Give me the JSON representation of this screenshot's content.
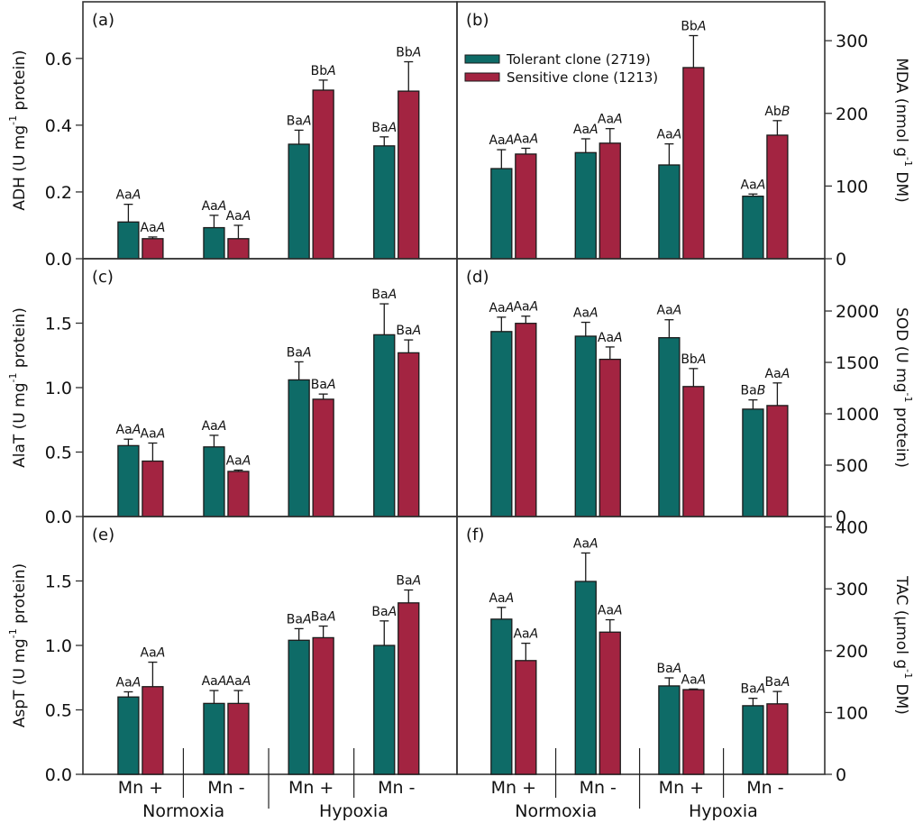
{
  "colors": {
    "tolerant": "#0e6b67",
    "sensitive": "#a32441",
    "axis": "#333333"
  },
  "legend": {
    "placement": "top-left of panel (b)",
    "entries": [
      {
        "label": "Tolerant clone (2719)",
        "series": "tolerant"
      },
      {
        "label": "Sensitive clone (1213)",
        "series": "sensitive"
      }
    ]
  },
  "x_axis": {
    "categories": [
      "Mn +",
      "Mn -",
      "Mn +",
      "Mn -"
    ],
    "groups": [
      "Normoxia",
      "Hypoxia"
    ]
  },
  "chart_data": [
    {
      "type": "bar",
      "panel": "(a)",
      "ylabel": "ADH (U mg-1 protein)",
      "ylabel_main": "ADH (U mg",
      "ylabel_sup": "-1",
      "ylabel_end": " protein)",
      "axis_side": "left",
      "ylim": [
        0,
        0.775
      ],
      "yticks": [
        0.0,
        0.2,
        0.4,
        0.6
      ],
      "ytick_labels": [
        "0.0",
        "0.2",
        "0.4",
        "0.6"
      ],
      "categories": [
        "Normoxia Mn +",
        "Normoxia Mn -",
        "Hypoxia Mn +",
        "Hypoxia Mn -"
      ],
      "series": [
        {
          "name": "Tolerant clone (2719)",
          "values": [
            0.11,
            0.093,
            0.343,
            0.338
          ],
          "errors": [
            0.053,
            0.037,
            0.042,
            0.027
          ],
          "annotations": [
            "AaA",
            "AaA",
            "BaA",
            "BaA"
          ]
        },
        {
          "name": "Sensitive clone (1213)",
          "values": [
            0.06,
            0.06,
            0.505,
            0.502
          ],
          "errors": [
            0.005,
            0.04,
            0.03,
            0.088
          ],
          "annotations": [
            "AaA",
            "AaA",
            "BbA",
            "BbA"
          ]
        }
      ]
    },
    {
      "type": "bar",
      "panel": "(b)",
      "ylabel": "MDA (nmol g-1 DM)",
      "ylabel_main": "MDA (nmol g",
      "ylabel_sup": "-1",
      "ylabel_end": " DM)",
      "axis_side": "right",
      "ylim": [
        0,
        356
      ],
      "yticks": [
        0,
        100,
        200,
        300
      ],
      "ytick_labels": [
        "0",
        "100",
        "200",
        "300"
      ],
      "categories": [
        "Normoxia Mn +",
        "Normoxia Mn -",
        "Hypoxia Mn +",
        "Hypoxia Mn -"
      ],
      "series": [
        {
          "name": "Tolerant clone (2719)",
          "values": [
            124,
            146,
            129,
            86
          ],
          "errors": [
            26,
            19,
            29,
            3
          ],
          "annotations": [
            "AaA",
            "AaA",
            "AaA",
            "AaA"
          ]
        },
        {
          "name": "Sensitive clone (1213)",
          "values": [
            144,
            159,
            263,
            170
          ],
          "errors": [
            8,
            20,
            44,
            20
          ],
          "annotations": [
            "AaA",
            "AaA",
            "BbA",
            "AbB"
          ]
        }
      ]
    },
    {
      "type": "bar",
      "panel": "(c)",
      "ylabel": "AlaT (U mg-1 protein)",
      "ylabel_main": "AlaT (U mg",
      "ylabel_sup": "-1",
      "ylabel_end": " protein)",
      "axis_side": "left",
      "ylim": [
        0,
        2.0
      ],
      "yticks": [
        0.0,
        0.5,
        1.0,
        1.5
      ],
      "ytick_labels": [
        "0.0",
        "0.5",
        "1.0",
        "1.5"
      ],
      "categories": [
        "Normoxia Mn +",
        "Normoxia Mn -",
        "Hypoxia Mn +",
        "Hypoxia Mn -"
      ],
      "series": [
        {
          "name": "Tolerant clone (2719)",
          "values": [
            0.55,
            0.54,
            1.06,
            1.41
          ],
          "errors": [
            0.05,
            0.09,
            0.14,
            0.24
          ],
          "annotations": [
            "AaA",
            "AaA",
            "BaA",
            "BaA"
          ]
        },
        {
          "name": "Sensitive clone (1213)",
          "values": [
            0.43,
            0.35,
            0.91,
            1.27
          ],
          "errors": [
            0.14,
            0.01,
            0.04,
            0.1
          ],
          "annotations": [
            "AaA",
            "AaA",
            "BaA",
            "BaA"
          ]
        }
      ]
    },
    {
      "type": "bar",
      "panel": "(d)",
      "ylabel": "SOD (U mg-1 protein)",
      "ylabel_main": "SOD (U mg",
      "ylabel_sup": "-1",
      "ylabel_end": " protein)",
      "axis_side": "right",
      "ylim": [
        0,
        2509
      ],
      "yticks": [
        0,
        500,
        1000,
        1500,
        2000
      ],
      "ytick_labels": [
        "0",
        "500",
        "1000",
        "1500",
        "2000"
      ],
      "categories": [
        "Normoxia Mn +",
        "Normoxia Mn -",
        "Hypoxia Mn +",
        "Hypoxia Mn -"
      ],
      "series": [
        {
          "name": "Tolerant clone (2719)",
          "values": [
            1800,
            1755,
            1740,
            1045
          ],
          "errors": [
            140,
            135,
            175,
            90
          ],
          "annotations": [
            "AaA",
            "AaA",
            "AaA",
            "BaB"
          ]
        },
        {
          "name": "Sensitive clone (1213)",
          "values": [
            1880,
            1530,
            1265,
            1080
          ],
          "errors": [
            70,
            120,
            175,
            220
          ],
          "annotations": [
            "AaA",
            "AaA",
            "BbA",
            "AaA"
          ]
        }
      ]
    },
    {
      "type": "bar",
      "panel": "(e)",
      "ylabel": "AspT (U mg-1 protein)",
      "ylabel_main": "AspT (U mg",
      "ylabel_sup": "-1",
      "ylabel_end": " protein)",
      "axis_side": "left",
      "ylim": [
        0,
        2.0
      ],
      "yticks": [
        0.0,
        0.5,
        1.0,
        1.5
      ],
      "ytick_labels": [
        "0.0",
        "0.5",
        "1.0",
        "1.5"
      ],
      "categories": [
        "Normoxia Mn +",
        "Normoxia Mn -",
        "Hypoxia Mn +",
        "Hypoxia Mn -"
      ],
      "series": [
        {
          "name": "Tolerant clone (2719)",
          "values": [
            0.6,
            0.55,
            1.04,
            1.0
          ],
          "errors": [
            0.04,
            0.1,
            0.09,
            0.19
          ],
          "annotations": [
            "AaA",
            "AaA",
            "BaA",
            "BaA"
          ]
        },
        {
          "name": "Sensitive clone (1213)",
          "values": [
            0.68,
            0.55,
            1.06,
            1.33
          ],
          "errors": [
            0.19,
            0.1,
            0.09,
            0.1
          ],
          "annotations": [
            "AaA",
            "AaA",
            "BaA",
            "BaA"
          ]
        }
      ]
    },
    {
      "type": "bar",
      "panel": "(f)",
      "ylabel": "TAC (µmol g-1 DM)",
      "ylabel_main": "TAC (µmol g",
      "ylabel_sup": "-1",
      "ylabel_end": " DM)",
      "axis_side": "right",
      "ylim": [
        0,
        417
      ],
      "yticks": [
        0,
        100,
        200,
        300,
        400
      ],
      "ytick_labels": [
        "0",
        "100",
        "200",
        "300",
        "400"
      ],
      "categories": [
        "Normoxia Mn +",
        "Normoxia Mn -",
        "Hypoxia Mn +",
        "Hypoxia Mn -"
      ],
      "series": [
        {
          "name": "Tolerant clone (2719)",
          "values": [
            251,
            312,
            143,
            111
          ],
          "errors": [
            19,
            46,
            13,
            12
          ],
          "annotations": [
            "AaA",
            "AaA",
            "BaA",
            "BaA"
          ]
        },
        {
          "name": "Sensitive clone (1213)",
          "values": [
            184,
            230,
            137,
            114
          ],
          "errors": [
            28,
            20,
            1,
            20
          ],
          "annotations": [
            "AaA",
            "AaA",
            "AaA",
            "BaA"
          ]
        }
      ]
    }
  ]
}
